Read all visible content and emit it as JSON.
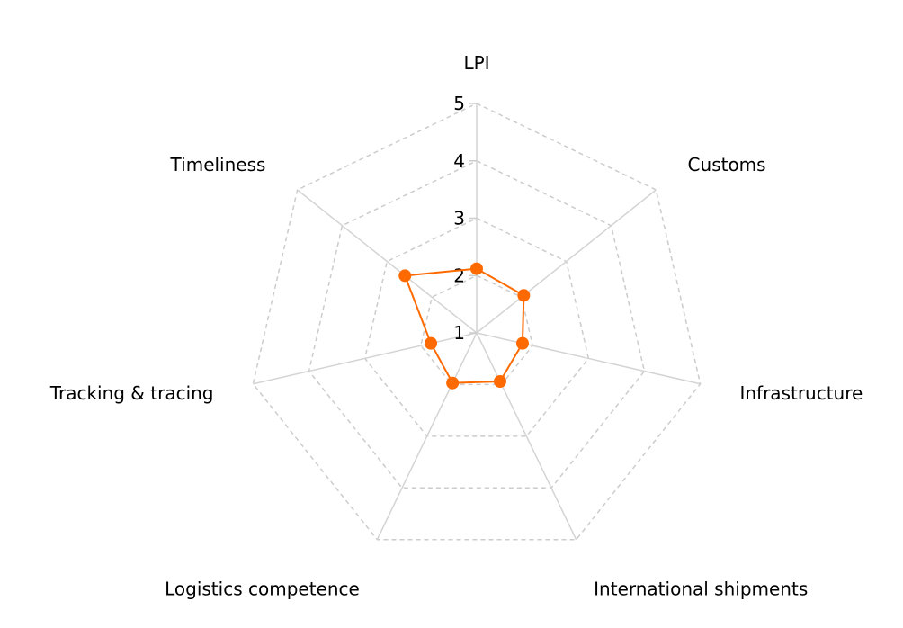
{
  "chart_data": {
    "type": "radar",
    "axes": [
      "LPI",
      "Customs",
      "Infrastructure",
      "International shipments",
      "Logistics competence",
      "Tracking & tracing",
      "Timeliness"
    ],
    "ticks": [
      "1",
      "2",
      "3",
      "4",
      "5"
    ],
    "rlim": [
      1,
      5
    ],
    "grid": true,
    "series": [
      {
        "values": [
          2.12,
          2.05,
          1.82,
          1.94,
          1.97,
          1.82,
          2.6
        ],
        "color": "#ff6a00"
      }
    ],
    "colors": {
      "spoke": "#d4d4d4",
      "ring": "#cccccc",
      "series": "#ff6a00"
    }
  }
}
